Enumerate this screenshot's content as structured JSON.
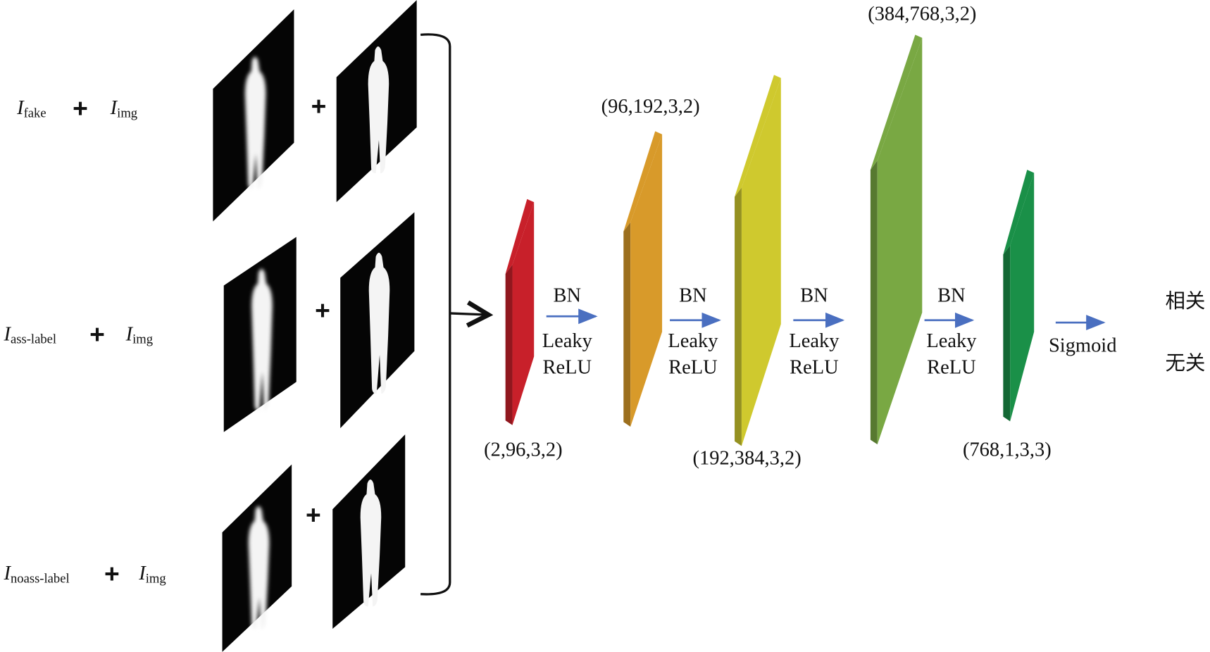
{
  "inputs": [
    {
      "left": {
        "symbol": "I",
        "subscript": "fake"
      },
      "operator": "+",
      "right": {
        "symbol": "I",
        "subscript": "img"
      }
    },
    {
      "left": {
        "symbol": "I",
        "subscript": "ass-label"
      },
      "operator": "+",
      "right": {
        "symbol": "I",
        "subscript": "img"
      }
    },
    {
      "left": {
        "symbol": "I",
        "subscript": "noass-label"
      },
      "operator": "+",
      "right": {
        "symbol": "I",
        "subscript": "img"
      }
    }
  ],
  "layers": [
    {
      "shape": "(2,96,3,2)",
      "color": "#c8202a"
    },
    {
      "shape": "(96,192,3,2)",
      "color": "#d89a2a"
    },
    {
      "shape": "(192,384,3,2)",
      "color": "#cfc92e"
    },
    {
      "shape": "(384,768,3,2)",
      "color": "#79a843"
    },
    {
      "shape": "(768,1,3,3)",
      "color": "#1a9048"
    }
  ],
  "operations": [
    {
      "lines": [
        "BN",
        "Leaky",
        "ReLU"
      ]
    },
    {
      "lines": [
        "BN",
        "Leaky",
        "ReLU"
      ]
    },
    {
      "lines": [
        "BN",
        "Leaky",
        "ReLU"
      ]
    },
    {
      "lines": [
        "BN",
        "Leaky",
        "ReLU"
      ]
    },
    {
      "lines": [
        "Sigmoid"
      ]
    }
  ],
  "outputs": [
    "相关",
    "无关"
  ]
}
